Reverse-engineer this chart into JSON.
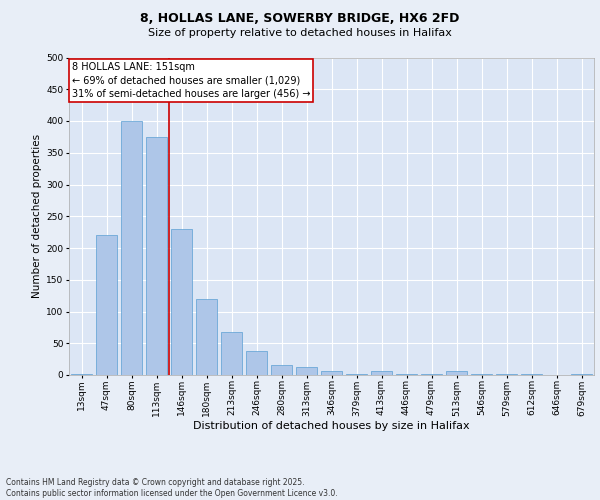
{
  "title_line1": "8, HOLLAS LANE, SOWERBY BRIDGE, HX6 2FD",
  "title_line2": "Size of property relative to detached houses in Halifax",
  "xlabel": "Distribution of detached houses by size in Halifax",
  "ylabel": "Number of detached properties",
  "categories": [
    "13sqm",
    "47sqm",
    "80sqm",
    "113sqm",
    "146sqm",
    "180sqm",
    "213sqm",
    "246sqm",
    "280sqm",
    "313sqm",
    "346sqm",
    "379sqm",
    "413sqm",
    "446sqm",
    "479sqm",
    "513sqm",
    "546sqm",
    "579sqm",
    "612sqm",
    "646sqm",
    "679sqm"
  ],
  "values": [
    2,
    220,
    400,
    375,
    230,
    120,
    68,
    38,
    16,
    12,
    6,
    2,
    6,
    2,
    2,
    7,
    1,
    1,
    1,
    0,
    2
  ],
  "bar_color": "#aec6e8",
  "bar_edge_color": "#5a9fd4",
  "vline_x_index": 4,
  "vline_color": "#cc0000",
  "annotation_text": "8 HOLLAS LANE: 151sqm\n← 69% of detached houses are smaller (1,029)\n31% of semi-detached houses are larger (456) →",
  "annotation_box_color": "#ffffff",
  "annotation_box_edge": "#cc0000",
  "bg_color": "#e8eef7",
  "plot_bg_color": "#dce6f5",
  "grid_color": "#ffffff",
  "footer": "Contains HM Land Registry data © Crown copyright and database right 2025.\nContains public sector information licensed under the Open Government Licence v3.0.",
  "ylim": [
    0,
    500
  ],
  "yticks": [
    0,
    50,
    100,
    150,
    200,
    250,
    300,
    350,
    400,
    450,
    500
  ],
  "title1_fontsize": 9,
  "title2_fontsize": 8,
  "xlabel_fontsize": 8,
  "ylabel_fontsize": 7.5,
  "tick_fontsize": 6.5,
  "annotation_fontsize": 7,
  "footer_fontsize": 5.5
}
